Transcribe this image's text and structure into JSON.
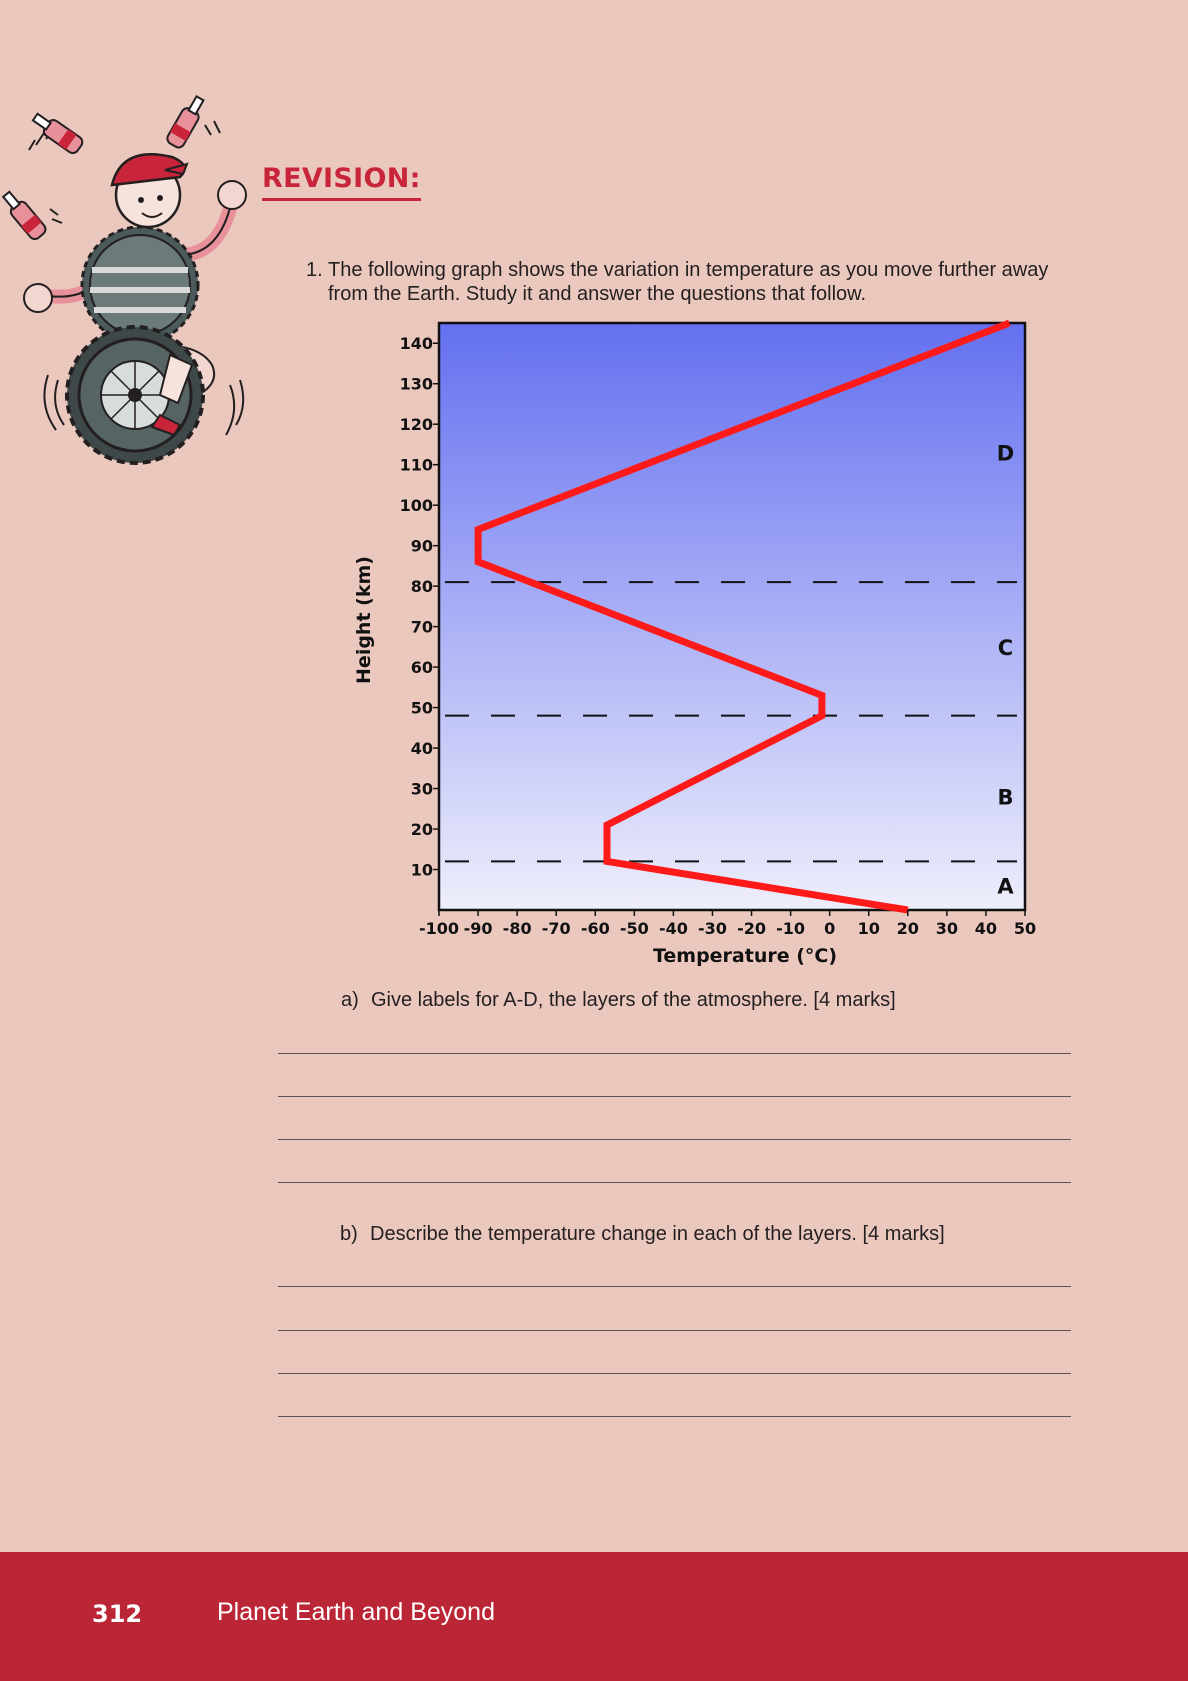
{
  "heading": "REVISION:",
  "question": {
    "number": "1.",
    "text": "The following graph shows the variation in temperature as you move further away from the Earth. Study it and answer the questions that follow."
  },
  "chart_data": {
    "type": "line",
    "xlabel": "Temperature (°C)",
    "ylabel": "Height (km)",
    "xlim": [
      -100,
      50
    ],
    "ylim": [
      0,
      145
    ],
    "x_ticks": [
      -100,
      -90,
      -80,
      -70,
      -60,
      -50,
      -40,
      -30,
      -20,
      -10,
      0,
      10,
      20,
      30,
      40,
      50
    ],
    "y_ticks": [
      10,
      20,
      30,
      40,
      50,
      60,
      70,
      80,
      90,
      100,
      110,
      120,
      130,
      140
    ],
    "series": [
      {
        "points": [
          {
            "x": 20,
            "y": 0
          },
          {
            "x": -57,
            "y": 12
          },
          {
            "x": -57,
            "y": 21
          },
          {
            "x": -2,
            "y": 48
          },
          {
            "x": -2,
            "y": 53
          },
          {
            "x": -90,
            "y": 86
          },
          {
            "x": -90,
            "y": 94
          },
          {
            "x": 46,
            "y": 145
          }
        ],
        "color": "#ff1a1a"
      }
    ],
    "boundaries": [
      12,
      48,
      81
    ],
    "region_labels": [
      {
        "text": "A",
        "x": 45,
        "y": 6
      },
      {
        "text": "B",
        "x": 45,
        "y": 28
      },
      {
        "text": "C",
        "x": 45,
        "y": 65
      },
      {
        "text": "D",
        "x": 45,
        "y": 113
      }
    ],
    "grid": false,
    "background_gradient": [
      "#6470f0",
      "#eeeefb"
    ]
  },
  "sub_questions": [
    {
      "label": "a)",
      "text": "Give labels for A-D, the layers of the atmosphere. [4 marks]"
    },
    {
      "label": "b)",
      "text": "Describe the temperature change in each of the layers. [4 marks]"
    }
  ],
  "footer": {
    "page_number": "312",
    "book_title": "Planet Earth and Beyond"
  },
  "colors": {
    "accent": "#c8243a",
    "footer_bg": "#bb2636",
    "page_bg": "#ebc8be"
  }
}
